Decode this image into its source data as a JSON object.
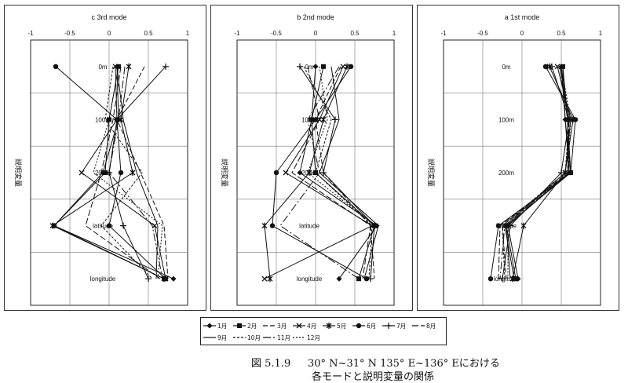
{
  "caption": {
    "label": "図 5.1.9",
    "line1": "30° N~31° N 135° E~136° Eにおける",
    "line2": "各モードと説明変量の関係"
  },
  "legend": {
    "months": [
      "1月",
      "2月",
      "3月",
      "4月",
      "5月",
      "6月",
      "7月",
      "8月",
      "9月",
      "10月",
      "11月",
      "12月"
    ]
  },
  "chart_data": [
    {
      "type": "line",
      "title": "c 3rd mode",
      "ylabel": "説明変量",
      "xlim": [
        -1,
        1
      ],
      "xticks": [
        "-1",
        "-0.5",
        "0",
        "0.5",
        "1"
      ],
      "categories": [
        "0m",
        "100m",
        "200m",
        "latitude",
        "longitude"
      ],
      "grid": true,
      "series": [
        {
          "name": "1月",
          "values": [
            0.1,
            0.12,
            -0.08,
            -0.7,
            0.82
          ]
        },
        {
          "name": "2月",
          "values": [
            0.12,
            0.0,
            -0.05,
            -0.7,
            0.7
          ]
        },
        {
          "name": "3月",
          "values": [
            0.45,
            0.1,
            0.4,
            0.7,
            0.75
          ]
        },
        {
          "name": "4月",
          "values": [
            0.08,
            0.1,
            -0.35,
            0.58,
            0.72
          ]
        },
        {
          "name": "5月",
          "values": [
            0.25,
            0.15,
            0.3,
            -0.72,
            0.7
          ]
        },
        {
          "name": "6月",
          "values": [
            -0.68,
            0.1,
            0.15,
            0.0,
            0.72
          ]
        },
        {
          "name": "7月",
          "values": [
            0.72,
            0.1,
            0.0,
            0.18,
            0.5
          ]
        },
        {
          "name": "8月",
          "values": [
            0.15,
            0.05,
            -0.1,
            -0.3,
            0.65
          ]
        },
        {
          "name": "9月",
          "values": [
            0.1,
            0.18,
            0.35,
            0.62,
            0.6
          ]
        },
        {
          "name": "10月",
          "values": [
            0.05,
            -0.05,
            0.42,
            -0.1,
            0.55
          ]
        },
        {
          "name": "11月",
          "values": [
            0.2,
            0.12,
            0.0,
            0.55,
            0.68
          ]
        },
        {
          "name": "12月",
          "values": [
            0.12,
            0.0,
            -0.2,
            0.68,
            0.62
          ]
        }
      ]
    },
    {
      "type": "line",
      "title": "b 2nd mode",
      "ylabel": "説明変量",
      "xlim": [
        -1,
        1
      ],
      "xticks": [
        "-1",
        "-0.5",
        "0",
        "0.5",
        "1"
      ],
      "categories": [
        "0m",
        "100m",
        "200m",
        "latitude",
        "longitude"
      ],
      "grid": true,
      "series": [
        {
          "name": "1月",
          "values": [
            0.0,
            -0.05,
            -0.2,
            0.78,
            0.3
          ]
        },
        {
          "name": "2月",
          "values": [
            0.1,
            -0.05,
            0.0,
            0.75,
            0.55
          ]
        },
        {
          "name": "3月",
          "values": [
            0.32,
            0.0,
            0.1,
            0.7,
            0.75
          ]
        },
        {
          "name": "4月",
          "values": [
            0.35,
            0.05,
            -0.38,
            0.72,
            -0.65
          ]
        },
        {
          "name": "5月",
          "values": [
            0.4,
            0.1,
            -0.08,
            -0.65,
            -0.58
          ]
        },
        {
          "name": "6月",
          "values": [
            0.45,
            0.0,
            -0.5,
            -0.55,
            0.65
          ]
        },
        {
          "name": "7月",
          "values": [
            -0.2,
            0.25,
            0.1,
            0.75,
            0.7
          ]
        },
        {
          "name": "8月",
          "values": [
            -0.1,
            0.05,
            -0.3,
            0.7,
            0.6
          ]
        },
        {
          "name": "9月",
          "values": [
            0.2,
            0.3,
            0.05,
            0.8,
            0.62
          ]
        },
        {
          "name": "10月",
          "values": [
            -0.15,
            0.2,
            0.0,
            0.72,
            0.68
          ]
        },
        {
          "name": "11月",
          "values": [
            0.3,
            -0.1,
            0.05,
            -0.45,
            0.55
          ]
        },
        {
          "name": "12月",
          "values": [
            0.05,
            0.15,
            -0.1,
            0.75,
            0.7
          ]
        }
      ]
    },
    {
      "type": "line",
      "title": "a 1st mode",
      "ylabel": "説明変量",
      "xlim": [
        -1,
        1
      ],
      "xticks": [
        "-1",
        "-0.5",
        "0",
        "0.5",
        "1"
      ],
      "categories": [
        "0m",
        "100m",
        "200m",
        "latitude",
        "longitude"
      ],
      "grid": true,
      "series": [
        {
          "name": "1月",
          "values": [
            0.5,
            0.55,
            0.6,
            -0.18,
            -0.05
          ]
        },
        {
          "name": "2月",
          "values": [
            0.52,
            0.58,
            0.62,
            -0.2,
            -0.08
          ]
        },
        {
          "name": "3月",
          "values": [
            0.48,
            0.6,
            0.58,
            -0.25,
            -0.2
          ]
        },
        {
          "name": "4月",
          "values": [
            0.45,
            0.62,
            0.55,
            -0.22,
            -0.1
          ]
        },
        {
          "name": "5月",
          "values": [
            0.35,
            0.65,
            0.55,
            0.02,
            -0.12
          ]
        },
        {
          "name": "6月",
          "values": [
            0.3,
            0.68,
            0.62,
            -0.3,
            -0.4
          ]
        },
        {
          "name": "7月",
          "values": [
            0.38,
            0.6,
            0.5,
            -0.15,
            -0.25
          ]
        },
        {
          "name": "8月",
          "values": [
            0.5,
            0.58,
            0.6,
            -0.28,
            -0.3
          ]
        },
        {
          "name": "9月",
          "values": [
            0.52,
            0.55,
            0.62,
            -0.2,
            -0.15
          ]
        },
        {
          "name": "10月",
          "values": [
            0.5,
            0.6,
            0.55,
            -0.25,
            -0.22
          ]
        },
        {
          "name": "11月",
          "values": [
            0.48,
            0.58,
            0.6,
            -0.22,
            -0.28
          ]
        },
        {
          "name": "12月",
          "values": [
            0.5,
            0.62,
            0.58,
            -0.18,
            -0.18
          ]
        }
      ]
    }
  ]
}
